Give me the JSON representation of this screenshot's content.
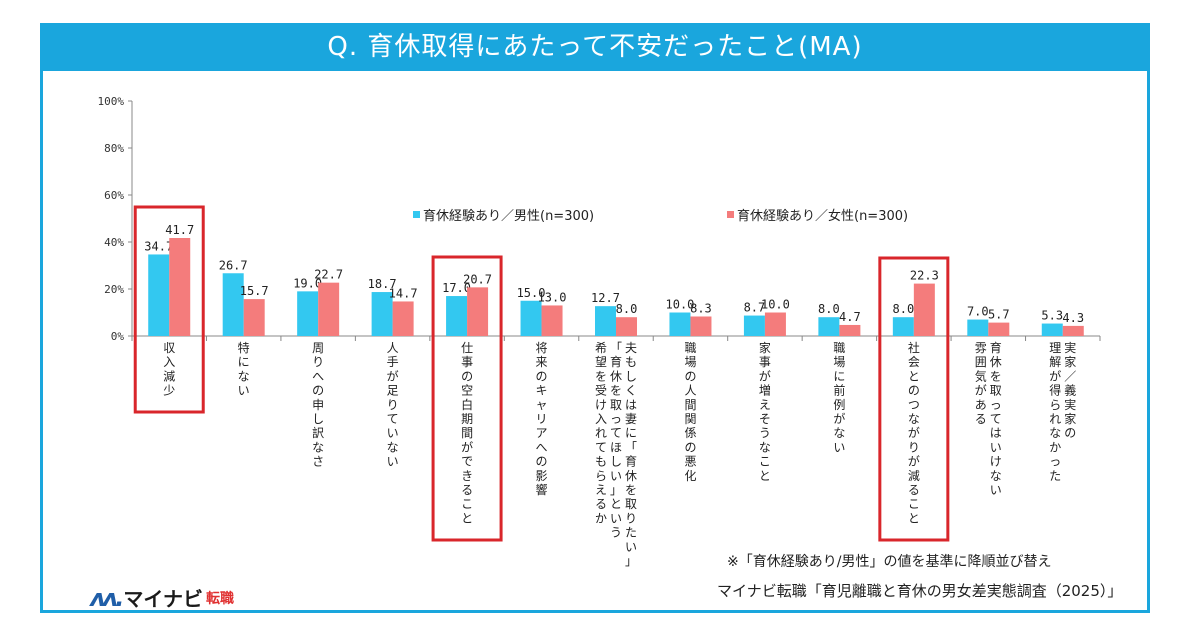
{
  "title": "Q. 育休取得にあたって不安だったこと(MA)",
  "legend": {
    "male": "育休経験あり／男性(n=300)",
    "female": "育休経験あり／女性(n=300)"
  },
  "note": "※「育休経験あり/男性」の値を基準に降順並び替え",
  "source": "マイナビ転職「育児離職と育休の男女差実態調査（2025）」",
  "logo": {
    "mark": "ᴧᴧ.",
    "text": "マイナビ",
    "sub": "転職"
  },
  "colors": {
    "male": "#33c8f0",
    "female": "#f47c7c",
    "highlight": "#d9262b",
    "axis": "#888888"
  },
  "chart_data": {
    "type": "bar",
    "ylim": [
      0,
      100
    ],
    "yticks": [
      "0%",
      "20%",
      "40%",
      "60%",
      "80%",
      "100%"
    ],
    "categories": [
      "収入減少",
      "特にない",
      "周りへの申し訳なさ",
      "人手が足りていない",
      "仕事の空白期間ができること",
      "将来のキャリアへの影響",
      "夫もしくは妻に「育休を取りたい」「育休を取ってほしい」という希望を受け入れてもらえるか",
      "職場の人間関係の悪化",
      "家事が増えそうなこと",
      "職場に前例がない",
      "社会とのつながりが減ること",
      "育休を取ってはいけない雰囲気がある",
      "理解が得られなかった実家／義実家の"
    ],
    "category_lines": [
      [
        "収入減少"
      ],
      [
        "特にない"
      ],
      [
        "周りへの申し訳なさ"
      ],
      [
        "人手が足りていない"
      ],
      [
        "仕事の空白期間ができること"
      ],
      [
        "将来のキャリアへの影響"
      ],
      [
        "夫もしくは妻に「育休を取りたい」",
        "「育休を取ってほしい」という",
        "希望を受け入れてもらえるか"
      ],
      [
        "職場の人間関係の悪化"
      ],
      [
        "家事が増えそうなこと"
      ],
      [
        "職場に前例がない"
      ],
      [
        "社会とのつながりが減ること"
      ],
      [
        "育休を取ってはいけない",
        "雰囲気がある"
      ],
      [
        "実家／義実家の",
        "理解が得られなかった"
      ]
    ],
    "series": [
      {
        "name": "育休経験あり／男性(n=300)",
        "values": [
          34.7,
          26.7,
          19.0,
          18.7,
          17.0,
          15.0,
          12.7,
          10.0,
          8.7,
          8.0,
          8.0,
          7.0,
          5.3
        ],
        "labels": [
          "34.7",
          "26.7",
          "19.0",
          "18.7",
          "17.0",
          "15.0",
          "12.7",
          "10.0",
          "8.7",
          "8.0",
          "8.0",
          "7.0",
          "5.3"
        ]
      },
      {
        "name": "育休経験あり／女性(n=300)",
        "values": [
          41.7,
          15.7,
          22.7,
          14.7,
          20.7,
          13.0,
          8.0,
          8.3,
          10.0,
          4.7,
          22.3,
          5.7,
          4.3
        ],
        "labels": [
          "41.7",
          "15.7",
          "22.7",
          "14.7",
          "20.7",
          "13.0",
          "8.0",
          "8.3",
          "10.0",
          "4.7",
          "22.3",
          "5.7",
          "4.3"
        ]
      }
    ],
    "highlighted": [
      0,
      4,
      10
    ]
  }
}
